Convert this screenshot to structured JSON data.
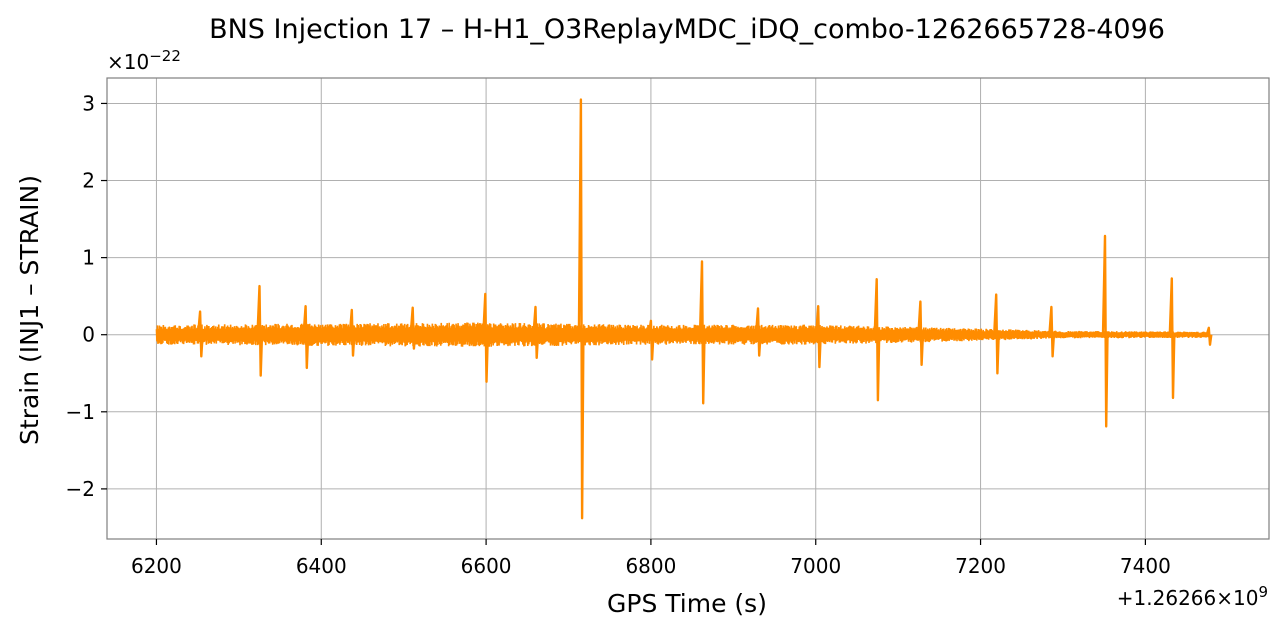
{
  "chart_data": {
    "type": "line",
    "title": "BNS Injection 17 – H-H1_O3ReplayMDC_iDQ_combo-1262665728-4096",
    "xlabel": "GPS Time (s)",
    "ylabel": "Strain (INJ1 – STRAIN)",
    "x_offset_label": "+1.26266×10",
    "x_offset_exp": "9",
    "y_scale_label": "×10",
    "y_scale_exp": "−22",
    "xlim": [
      6140,
      7550
    ],
    "ylim": [
      -2.65,
      3.33
    ],
    "x_ticks": [
      6200,
      6400,
      6600,
      6800,
      7000,
      7200,
      7400
    ],
    "x_tick_labels": [
      "6200",
      "6400",
      "6600",
      "6800",
      "7000",
      "7200",
      "7400"
    ],
    "y_ticks": [
      -2,
      -1,
      0,
      1,
      2,
      3
    ],
    "y_tick_labels": [
      "−2",
      "−1",
      "0",
      "1",
      "2",
      "3"
    ],
    "grid": true,
    "line_color": "#ff8c00",
    "series": [
      {
        "x_range": [
          6200,
          7478
        ],
        "noise_band": [
          {
            "x": 6200,
            "half_width": 0.13
          },
          {
            "x": 6600,
            "half_width": 0.16
          },
          {
            "x": 6800,
            "half_width": 0.13
          },
          {
            "x": 7000,
            "half_width": 0.13
          },
          {
            "x": 7130,
            "half_width": 0.1
          },
          {
            "x": 7300,
            "half_width": 0.05
          },
          {
            "x": 7478,
            "half_width": 0.04
          }
        ],
        "glitches": [
          {
            "x": 6253,
            "max": 0.3,
            "min": -0.28
          },
          {
            "x": 6325,
            "max": 0.63,
            "min": -0.53
          },
          {
            "x": 6381,
            "max": 0.37,
            "min": -0.43
          },
          {
            "x": 6437,
            "max": 0.32,
            "min": -0.27
          },
          {
            "x": 6511,
            "max": 0.35,
            "min": -0.18
          },
          {
            "x": 6599,
            "max": 0.53,
            "min": -0.61
          },
          {
            "x": 6660,
            "max": 0.36,
            "min": -0.3
          },
          {
            "x": 6715,
            "max": 3.05,
            "min": -2.38
          },
          {
            "x": 6800,
            "max": 0.18,
            "min": -0.32
          },
          {
            "x": 6862,
            "max": 0.95,
            "min": -0.89
          },
          {
            "x": 6930,
            "max": 0.34,
            "min": -0.27
          },
          {
            "x": 7003,
            "max": 0.37,
            "min": -0.42
          },
          {
            "x": 7074,
            "max": 0.72,
            "min": -0.85
          },
          {
            "x": 7127,
            "max": 0.43,
            "min": -0.39
          },
          {
            "x": 7219,
            "max": 0.52,
            "min": -0.5
          },
          {
            "x": 7286,
            "max": 0.36,
            "min": -0.28
          },
          {
            "x": 7351,
            "max": 1.28,
            "min": -1.19
          },
          {
            "x": 7432,
            "max": 0.73,
            "min": -0.82
          },
          {
            "x": 7477,
            "max": 0.09,
            "min": -0.13
          }
        ]
      }
    ]
  }
}
